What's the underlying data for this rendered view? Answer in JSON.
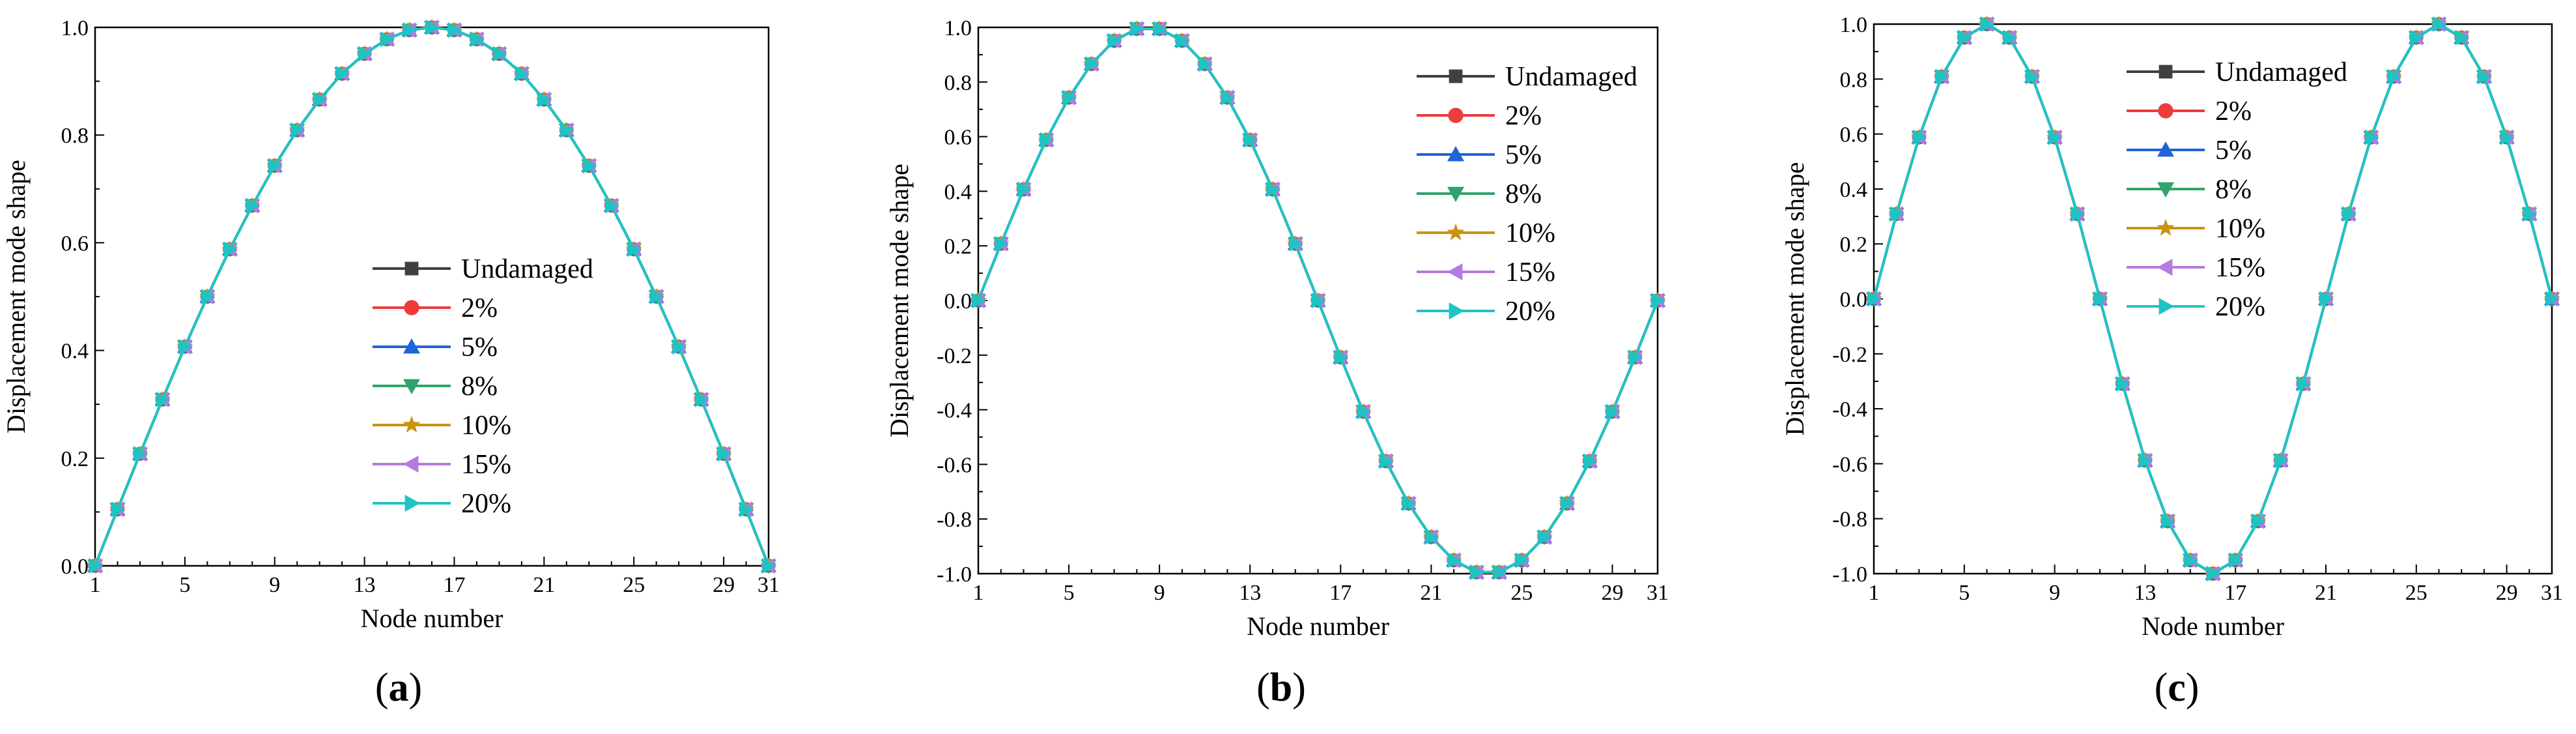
{
  "chart_data": [
    {
      "type": "line",
      "panel_label": "a",
      "xlabel": "Node number",
      "ylabel": "Displacement mode shape",
      "xlim": [
        1,
        31
      ],
      "ylim": [
        0.0,
        1.0
      ],
      "xticks": [
        1,
        5,
        9,
        13,
        17,
        21,
        25,
        29,
        31
      ],
      "yticks": [
        0.0,
        0.2,
        0.4,
        0.6,
        0.8,
        1.0
      ],
      "ytick_labels": [
        "0.0",
        "0.2",
        "0.4",
        "0.6",
        "0.8",
        "1.0"
      ],
      "legend_position": "center-right",
      "x": [
        1,
        2,
        3,
        4,
        5,
        6,
        7,
        8,
        9,
        10,
        11,
        12,
        13,
        14,
        15,
        16,
        17,
        18,
        19,
        20,
        21,
        22,
        23,
        24,
        25,
        26,
        27,
        28,
        29,
        30,
        31
      ],
      "series": [
        {
          "name": "Undamaged",
          "color": "#404040",
          "marker": "square",
          "values": [
            0,
            0.105,
            0.208,
            0.309,
            0.407,
            0.5,
            0.588,
            0.669,
            0.743,
            0.809,
            0.866,
            0.914,
            0.951,
            0.978,
            0.995,
            1,
            0.995,
            0.978,
            0.951,
            0.914,
            0.866,
            0.809,
            0.743,
            0.669,
            0.588,
            0.5,
            0.407,
            0.309,
            0.208,
            0.105,
            0
          ]
        },
        {
          "name": "2%",
          "color": "#ee3b3b",
          "marker": "circle",
          "values": [
            0,
            0.105,
            0.208,
            0.309,
            0.407,
            0.5,
            0.588,
            0.669,
            0.743,
            0.809,
            0.866,
            0.914,
            0.951,
            0.978,
            0.995,
            1,
            0.995,
            0.978,
            0.951,
            0.914,
            0.866,
            0.809,
            0.743,
            0.669,
            0.588,
            0.5,
            0.407,
            0.309,
            0.208,
            0.105,
            0
          ]
        },
        {
          "name": "5%",
          "color": "#1f64d8",
          "marker": "triangle-up",
          "values": [
            0,
            0.105,
            0.208,
            0.309,
            0.407,
            0.5,
            0.588,
            0.669,
            0.743,
            0.809,
            0.866,
            0.914,
            0.951,
            0.978,
            0.995,
            1,
            0.995,
            0.978,
            0.951,
            0.914,
            0.866,
            0.809,
            0.743,
            0.669,
            0.588,
            0.5,
            0.407,
            0.309,
            0.208,
            0.105,
            0
          ]
        },
        {
          "name": "8%",
          "color": "#2fa36b",
          "marker": "triangle-down",
          "values": [
            0,
            0.105,
            0.208,
            0.309,
            0.407,
            0.5,
            0.588,
            0.669,
            0.743,
            0.809,
            0.866,
            0.914,
            0.951,
            0.978,
            0.995,
            1,
            0.995,
            0.978,
            0.951,
            0.914,
            0.866,
            0.809,
            0.743,
            0.669,
            0.588,
            0.5,
            0.407,
            0.309,
            0.208,
            0.105,
            0
          ]
        },
        {
          "name": "10%",
          "color": "#c89410",
          "marker": "star",
          "values": [
            0,
            0.105,
            0.208,
            0.309,
            0.407,
            0.5,
            0.588,
            0.669,
            0.743,
            0.809,
            0.866,
            0.914,
            0.951,
            0.978,
            0.995,
            1,
            0.995,
            0.978,
            0.951,
            0.914,
            0.866,
            0.809,
            0.743,
            0.669,
            0.588,
            0.5,
            0.407,
            0.309,
            0.208,
            0.105,
            0
          ]
        },
        {
          "name": "15%",
          "color": "#b57ae0",
          "marker": "triangle-left",
          "values": [
            0,
            0.105,
            0.208,
            0.309,
            0.407,
            0.5,
            0.588,
            0.669,
            0.743,
            0.809,
            0.866,
            0.914,
            0.951,
            0.978,
            0.995,
            1,
            0.995,
            0.978,
            0.951,
            0.914,
            0.866,
            0.809,
            0.743,
            0.669,
            0.588,
            0.5,
            0.407,
            0.309,
            0.208,
            0.105,
            0
          ]
        },
        {
          "name": "20%",
          "color": "#1ec4c4",
          "marker": "triangle-right",
          "values": [
            0,
            0.105,
            0.208,
            0.309,
            0.407,
            0.5,
            0.588,
            0.669,
            0.743,
            0.809,
            0.866,
            0.914,
            0.951,
            0.978,
            0.995,
            1,
            0.995,
            0.978,
            0.951,
            0.914,
            0.866,
            0.809,
            0.743,
            0.669,
            0.588,
            0.5,
            0.407,
            0.309,
            0.208,
            0.105,
            0
          ]
        }
      ]
    },
    {
      "type": "line",
      "panel_label": "b",
      "xlabel": "Node number",
      "ylabel": "Displacement mode shape",
      "xlim": [
        1,
        31
      ],
      "ylim": [
        -1.0,
        1.0
      ],
      "xticks": [
        1,
        5,
        9,
        13,
        17,
        21,
        25,
        29,
        31
      ],
      "yticks": [
        -1.0,
        -0.8,
        -0.6,
        -0.4,
        -0.2,
        0.0,
        0.2,
        0.4,
        0.6,
        0.8,
        1.0
      ],
      "ytick_labels": [
        "-1.0",
        "-0.8",
        "-0.6",
        "-0.4",
        "-0.2",
        "0.0",
        "0.2",
        "0.4",
        "0.6",
        "0.8",
        "1.0"
      ],
      "legend_position": "top-right",
      "x": [
        1,
        2,
        3,
        4,
        5,
        6,
        7,
        8,
        9,
        10,
        11,
        12,
        13,
        14,
        15,
        16,
        17,
        18,
        19,
        20,
        21,
        22,
        23,
        24,
        25,
        26,
        27,
        28,
        29,
        30,
        31
      ],
      "series": [
        {
          "name": "Undamaged",
          "color": "#404040",
          "marker": "square",
          "values": [
            0,
            0.208,
            0.407,
            0.588,
            0.743,
            0.866,
            0.951,
            0.995,
            0.995,
            0.951,
            0.866,
            0.743,
            0.588,
            0.407,
            0.208,
            0,
            -0.208,
            -0.407,
            -0.588,
            -0.743,
            -0.866,
            -0.951,
            -0.995,
            -0.995,
            -0.951,
            -0.866,
            -0.743,
            -0.588,
            -0.407,
            -0.208,
            0
          ]
        },
        {
          "name": "2%",
          "color": "#ee3b3b",
          "marker": "circle",
          "values": [
            0,
            0.208,
            0.407,
            0.588,
            0.743,
            0.866,
            0.951,
            0.995,
            0.995,
            0.951,
            0.866,
            0.743,
            0.588,
            0.407,
            0.208,
            0,
            -0.208,
            -0.407,
            -0.588,
            -0.743,
            -0.866,
            -0.951,
            -0.995,
            -0.995,
            -0.951,
            -0.866,
            -0.743,
            -0.588,
            -0.407,
            -0.208,
            0
          ]
        },
        {
          "name": "5%",
          "color": "#1f64d8",
          "marker": "triangle-up",
          "values": [
            0,
            0.208,
            0.407,
            0.588,
            0.743,
            0.866,
            0.951,
            0.995,
            0.995,
            0.951,
            0.866,
            0.743,
            0.588,
            0.407,
            0.208,
            0,
            -0.208,
            -0.407,
            -0.588,
            -0.743,
            -0.866,
            -0.951,
            -0.995,
            -0.995,
            -0.951,
            -0.866,
            -0.743,
            -0.588,
            -0.407,
            -0.208,
            0
          ]
        },
        {
          "name": "8%",
          "color": "#2fa36b",
          "marker": "triangle-down",
          "values": [
            0,
            0.208,
            0.407,
            0.588,
            0.743,
            0.866,
            0.951,
            0.995,
            0.995,
            0.951,
            0.866,
            0.743,
            0.588,
            0.407,
            0.208,
            0,
            -0.208,
            -0.407,
            -0.588,
            -0.743,
            -0.866,
            -0.951,
            -0.995,
            -0.995,
            -0.951,
            -0.866,
            -0.743,
            -0.588,
            -0.407,
            -0.208,
            0
          ]
        },
        {
          "name": "10%",
          "color": "#c89410",
          "marker": "star",
          "values": [
            0,
            0.208,
            0.407,
            0.588,
            0.743,
            0.866,
            0.951,
            0.995,
            0.995,
            0.951,
            0.866,
            0.743,
            0.588,
            0.407,
            0.208,
            0,
            -0.208,
            -0.407,
            -0.588,
            -0.743,
            -0.866,
            -0.951,
            -0.995,
            -0.995,
            -0.951,
            -0.866,
            -0.743,
            -0.588,
            -0.407,
            -0.208,
            0
          ]
        },
        {
          "name": "15%",
          "color": "#b57ae0",
          "marker": "triangle-left",
          "values": [
            0,
            0.208,
            0.407,
            0.588,
            0.743,
            0.866,
            0.951,
            0.995,
            0.995,
            0.951,
            0.866,
            0.743,
            0.588,
            0.407,
            0.208,
            0,
            -0.208,
            -0.407,
            -0.588,
            -0.743,
            -0.866,
            -0.951,
            -0.995,
            -0.995,
            -0.951,
            -0.866,
            -0.743,
            -0.588,
            -0.407,
            -0.208,
            0
          ]
        },
        {
          "name": "20%",
          "color": "#1ec4c4",
          "marker": "triangle-right",
          "values": [
            0,
            0.208,
            0.407,
            0.588,
            0.743,
            0.866,
            0.951,
            0.995,
            0.995,
            0.951,
            0.866,
            0.743,
            0.588,
            0.407,
            0.208,
            0,
            -0.208,
            -0.407,
            -0.588,
            -0.743,
            -0.866,
            -0.951,
            -0.995,
            -0.995,
            -0.951,
            -0.866,
            -0.743,
            -0.588,
            -0.407,
            -0.208,
            0
          ]
        }
      ]
    },
    {
      "type": "line",
      "panel_label": "c",
      "xlabel": "Node number",
      "ylabel": "Displacement mode shape",
      "xlim": [
        1,
        31
      ],
      "ylim": [
        -1.0,
        1.0
      ],
      "xticks": [
        1,
        5,
        9,
        13,
        17,
        21,
        25,
        29,
        31
      ],
      "yticks": [
        -1.0,
        -0.8,
        -0.6,
        -0.4,
        -0.2,
        0.0,
        0.2,
        0.4,
        0.6,
        0.8,
        1.0
      ],
      "ytick_labels": [
        "-1.0",
        "-0.8",
        "-0.6",
        "-0.4",
        "-0.2",
        "0.0",
        "0.2",
        "0.4",
        "0.6",
        "0.8",
        "1.0"
      ],
      "legend_position": "top-center",
      "x": [
        1,
        2,
        3,
        4,
        5,
        6,
        7,
        8,
        9,
        10,
        11,
        12,
        13,
        14,
        15,
        16,
        17,
        18,
        19,
        20,
        21,
        22,
        23,
        24,
        25,
        26,
        27,
        28,
        29,
        30,
        31
      ],
      "series": [
        {
          "name": "Undamaged",
          "color": "#404040",
          "marker": "square",
          "values": [
            0,
            0.309,
            0.588,
            0.809,
            0.951,
            1,
            0.951,
            0.809,
            0.588,
            0.309,
            0,
            -0.309,
            -0.588,
            -0.809,
            -0.951,
            -1,
            -0.951,
            -0.809,
            -0.588,
            -0.309,
            0,
            0.309,
            0.588,
            0.809,
            0.951,
            1,
            0.951,
            0.809,
            0.588,
            0.309,
            0
          ]
        },
        {
          "name": "2%",
          "color": "#ee3b3b",
          "marker": "circle",
          "values": [
            0,
            0.309,
            0.588,
            0.809,
            0.951,
            1,
            0.951,
            0.809,
            0.588,
            0.309,
            0,
            -0.309,
            -0.588,
            -0.809,
            -0.951,
            -1,
            -0.951,
            -0.809,
            -0.588,
            -0.309,
            0,
            0.309,
            0.588,
            0.809,
            0.951,
            1,
            0.951,
            0.809,
            0.588,
            0.309,
            0
          ]
        },
        {
          "name": "5%",
          "color": "#1f64d8",
          "marker": "triangle-up",
          "values": [
            0,
            0.309,
            0.588,
            0.809,
            0.951,
            1,
            0.951,
            0.809,
            0.588,
            0.309,
            0,
            -0.309,
            -0.588,
            -0.809,
            -0.951,
            -1,
            -0.951,
            -0.809,
            -0.588,
            -0.309,
            0,
            0.309,
            0.588,
            0.809,
            0.951,
            1,
            0.951,
            0.809,
            0.588,
            0.309,
            0
          ]
        },
        {
          "name": "8%",
          "color": "#2fa36b",
          "marker": "triangle-down",
          "values": [
            0,
            0.309,
            0.588,
            0.809,
            0.951,
            1,
            0.951,
            0.809,
            0.588,
            0.309,
            0,
            -0.309,
            -0.588,
            -0.809,
            -0.951,
            -1,
            -0.951,
            -0.809,
            -0.588,
            -0.309,
            0,
            0.309,
            0.588,
            0.809,
            0.951,
            1,
            0.951,
            0.809,
            0.588,
            0.309,
            0
          ]
        },
        {
          "name": "10%",
          "color": "#c89410",
          "marker": "star",
          "values": [
            0,
            0.309,
            0.588,
            0.809,
            0.951,
            1,
            0.951,
            0.809,
            0.588,
            0.309,
            0,
            -0.309,
            -0.588,
            -0.809,
            -0.951,
            -1,
            -0.951,
            -0.809,
            -0.588,
            -0.309,
            0,
            0.309,
            0.588,
            0.809,
            0.951,
            1,
            0.951,
            0.809,
            0.588,
            0.309,
            0
          ]
        },
        {
          "name": "15%",
          "color": "#b57ae0",
          "marker": "triangle-left",
          "values": [
            0,
            0.309,
            0.588,
            0.809,
            0.951,
            1,
            0.951,
            0.809,
            0.588,
            0.309,
            0,
            -0.309,
            -0.588,
            -0.809,
            -0.951,
            -1,
            -0.951,
            -0.809,
            -0.588,
            -0.309,
            0,
            0.309,
            0.588,
            0.809,
            0.951,
            1,
            0.951,
            0.809,
            0.588,
            0.309,
            0
          ]
        },
        {
          "name": "20%",
          "color": "#1ec4c4",
          "marker": "triangle-right",
          "values": [
            0,
            0.309,
            0.588,
            0.809,
            0.951,
            1,
            0.951,
            0.809,
            0.588,
            0.309,
            0,
            -0.309,
            -0.588,
            -0.809,
            -0.951,
            -1,
            -0.951,
            -0.809,
            -0.588,
            -0.309,
            0,
            0.309,
            0.588,
            0.809,
            0.951,
            1,
            0.951,
            0.809,
            0.588,
            0.309,
            0
          ]
        }
      ]
    }
  ]
}
